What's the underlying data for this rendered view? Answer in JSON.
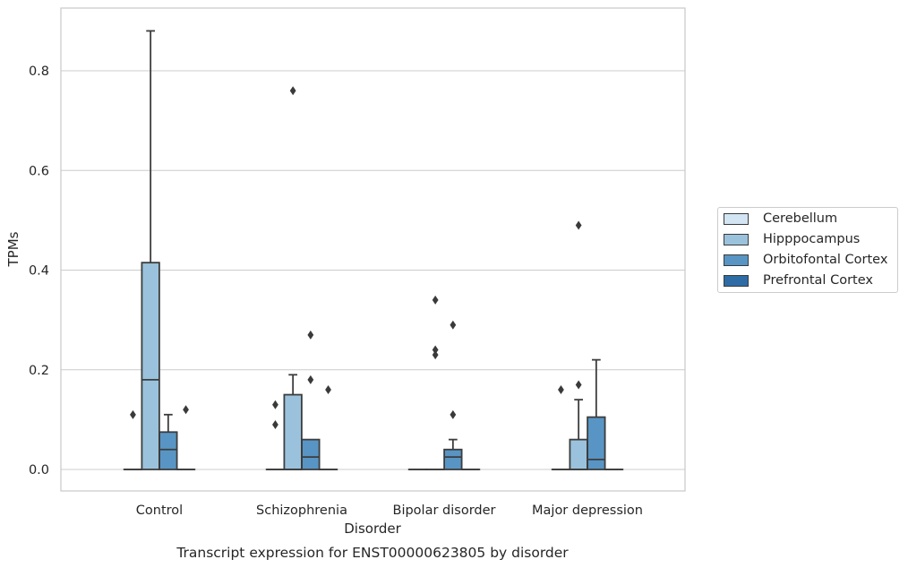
{
  "chart_data": {
    "type": "box",
    "title": "Transcript expression for ENST00000623805 by disorder",
    "xlabel": "Disorder",
    "ylabel": "TPMs",
    "ylim": [
      -0.042,
      0.925
    ],
    "yticks": [
      0.0,
      0.2,
      0.4,
      0.6,
      0.8
    ],
    "ytick_labels": [
      "0.0",
      "0.2",
      "0.4",
      "0.6",
      "0.8"
    ],
    "grid": true,
    "legend_position": "right",
    "categories": [
      "Control",
      "Schizophrenia",
      "Bipolar disorder",
      "Major depression"
    ],
    "series": [
      {
        "name": "Cerebellum",
        "color": "#d3e4f2",
        "boxes": [
          {
            "q1": 0,
            "median": 0,
            "q3": 0,
            "whisker_low": 0,
            "whisker_high": 0,
            "outliers": [
              0.11
            ]
          },
          {
            "q1": 0,
            "median": 0,
            "q3": 0,
            "whisker_low": 0,
            "whisker_high": 0,
            "outliers": [
              0.09,
              0.13
            ]
          },
          {
            "q1": 0,
            "median": 0,
            "q3": 0,
            "whisker_low": 0,
            "whisker_high": 0,
            "outliers": []
          },
          {
            "q1": 0,
            "median": 0,
            "q3": 0,
            "whisker_low": 0,
            "whisker_high": 0,
            "outliers": [
              0.16
            ]
          }
        ]
      },
      {
        "name": "Hipppocampus",
        "color": "#9ac2dc",
        "boxes": [
          {
            "q1": 0,
            "median": 0.18,
            "q3": 0.415,
            "whisker_low": 0,
            "whisker_high": 0.88,
            "outliers": []
          },
          {
            "q1": 0,
            "median": 0,
            "q3": 0.15,
            "whisker_low": 0,
            "whisker_high": 0.19,
            "outliers": [
              0.76
            ]
          },
          {
            "q1": 0,
            "median": 0,
            "q3": 0,
            "whisker_low": 0,
            "whisker_high": 0,
            "outliers": [
              0.23,
              0.24,
              0.34
            ]
          },
          {
            "q1": 0,
            "median": 0,
            "q3": 0.06,
            "whisker_low": 0,
            "whisker_high": 0.14,
            "outliers": [
              0.17,
              0.49
            ]
          }
        ]
      },
      {
        "name": "Orbitofontal Cortex",
        "color": "#5895c4",
        "boxes": [
          {
            "q1": 0,
            "median": 0.04,
            "q3": 0.075,
            "whisker_low": 0,
            "whisker_high": 0.11,
            "outliers": []
          },
          {
            "q1": 0,
            "median": 0.025,
            "q3": 0.06,
            "whisker_low": 0,
            "whisker_high": 0.06,
            "outliers": [
              0.18,
              0.27
            ]
          },
          {
            "q1": 0,
            "median": 0.025,
            "q3": 0.04,
            "whisker_low": 0,
            "whisker_high": 0.06,
            "outliers": [
              0.11,
              0.29
            ]
          },
          {
            "q1": 0,
            "median": 0.02,
            "q3": 0.105,
            "whisker_low": 0,
            "whisker_high": 0.22,
            "outliers": []
          }
        ]
      },
      {
        "name": "Prefrontal Cortex",
        "color": "#2e6ca5",
        "boxes": [
          {
            "q1": 0,
            "median": 0,
            "q3": 0,
            "whisker_low": 0,
            "whisker_high": 0,
            "outliers": [
              0.12
            ]
          },
          {
            "q1": 0,
            "median": 0,
            "q3": 0,
            "whisker_low": 0,
            "whisker_high": 0,
            "outliers": [
              0.16
            ]
          },
          {
            "q1": 0,
            "median": 0,
            "q3": 0,
            "whisker_low": 0,
            "whisker_high": 0,
            "outliers": []
          },
          {
            "q1": 0,
            "median": 0,
            "q3": 0,
            "whisker_low": 0,
            "whisker_high": 0,
            "outliers": []
          }
        ]
      }
    ]
  }
}
